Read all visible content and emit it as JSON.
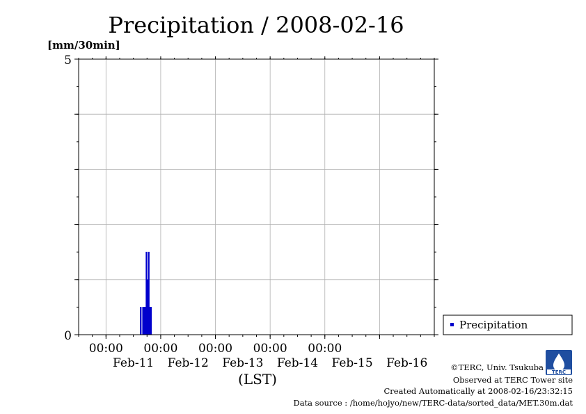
{
  "chart_data": {
    "type": "bar",
    "title": "Precipitation / 2008-02-16",
    "ylabel": "[mm/30min]",
    "xlabel": "(LST)",
    "ylim": [
      0,
      5
    ],
    "y_tick_labels": [
      "0",
      "5"
    ],
    "x_time_labels": [
      "00:00",
      "00:00",
      "00:00",
      "00:00",
      "00:00"
    ],
    "x_date_labels": [
      "Feb-11",
      "Feb-12",
      "Feb-13",
      "Feb-14",
      "Feb-15",
      "Feb-16"
    ],
    "grid": true,
    "legend_position": "right",
    "series": [
      {
        "name": "Precipitation",
        "color": "#0000cc",
        "data": [
          {
            "time": "2008-02-11 15:30",
            "value": 0.5
          },
          {
            "time": "2008-02-11 16:30",
            "value": 0.5
          },
          {
            "time": "2008-02-11 17:00",
            "value": 0.5
          },
          {
            "time": "2008-02-11 17:30",
            "value": 0.5
          },
          {
            "time": "2008-02-11 18:00",
            "value": 1.5
          },
          {
            "time": "2008-02-11 18:30",
            "value": 1.0
          },
          {
            "time": "2008-02-11 19:00",
            "value": 1.5
          },
          {
            "time": "2008-02-11 19:30",
            "value": 0.5
          },
          {
            "time": "2008-02-11 20:00",
            "value": 0.5
          }
        ]
      }
    ]
  },
  "credits": {
    "copyright": "©TERC, Univ. Tsukuba",
    "site": "Observed at TERC Tower site",
    "created": "Created Automatically at 2008-02-16/23:32:15",
    "source": "Data source : /home/hojyo/new/TERC-data/sorted_data/MET.30m.dat"
  },
  "logo": {
    "text": "TERC"
  }
}
